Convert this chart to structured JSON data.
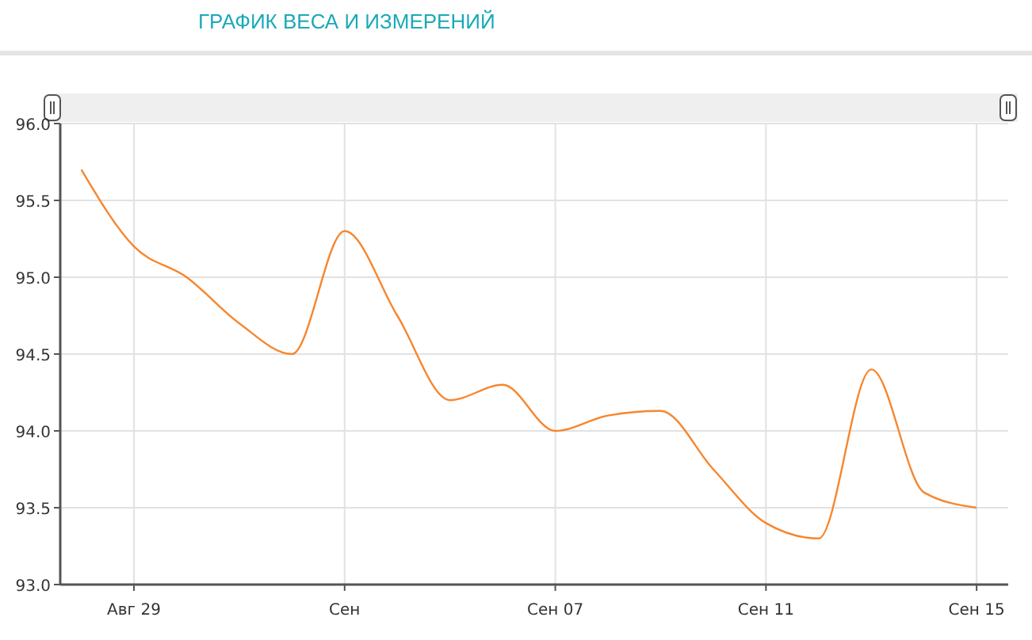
{
  "chart_data": {
    "type": "line",
    "title": "ГРАФИК ВЕСА И ИЗМЕРЕНИЙ",
    "categories": [
      null,
      "Авг 29",
      null,
      null,
      null,
      "Сен",
      null,
      null,
      null,
      "Сен 07",
      null,
      null,
      null,
      "Сен 11",
      null,
      null,
      null,
      "Сен 15"
    ],
    "series": [
      {
        "color": "#f7862d",
        "values": [
          95.7,
          95.2,
          95.0,
          94.7,
          94.5,
          95.3,
          94.75,
          94.2,
          94.3,
          94.0,
          94.1,
          94.13,
          93.75,
          93.4,
          93.3,
          94.4,
          93.6,
          93.5
        ]
      }
    ],
    "ylim": [
      93,
      96
    ],
    "yticks": [
      {
        "value": 93,
        "label": "93.0"
      },
      {
        "value": 93.5,
        "label": "93.5"
      },
      {
        "value": 94,
        "label": "94.0"
      },
      {
        "value": 94.5,
        "label": "94.5"
      },
      {
        "value": 95,
        "label": "95.0"
      },
      {
        "value": 95.5,
        "label": "95.5"
      },
      {
        "value": 96,
        "label": "96.0"
      }
    ],
    "grid": true,
    "marker": "none",
    "line_style": "solid"
  }
}
